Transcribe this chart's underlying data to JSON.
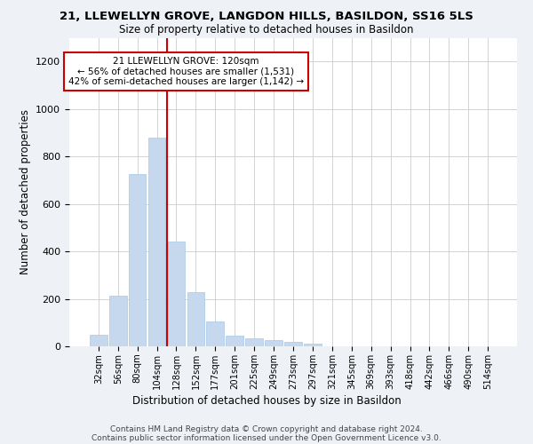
{
  "title": "21, LLEWELLYN GROVE, LANGDON HILLS, BASILDON, SS16 5LS",
  "subtitle": "Size of property relative to detached houses in Basildon",
  "xlabel": "Distribution of detached houses by size in Basildon",
  "ylabel": "Number of detached properties",
  "bar_color": "#c5d8ed",
  "bar_edgecolor": "#a8c8e8",
  "annotation_line_color": "#cc0000",
  "annotation_text_line1": "21 LLEWELLYN GROVE: 120sqm",
  "annotation_text_line2": "← 56% of detached houses are smaller (1,531)",
  "annotation_text_line3": "42% of semi-detached houses are larger (1,142) →",
  "categories": [
    "32sqm",
    "56sqm",
    "80sqm",
    "104sqm",
    "128sqm",
    "152sqm",
    "177sqm",
    "201sqm",
    "225sqm",
    "249sqm",
    "273sqm",
    "297sqm",
    "321sqm",
    "345sqm",
    "369sqm",
    "393sqm",
    "418sqm",
    "442sqm",
    "466sqm",
    "490sqm",
    "514sqm"
  ],
  "values": [
    50,
    215,
    725,
    880,
    440,
    230,
    105,
    45,
    35,
    25,
    20,
    10,
    0,
    0,
    0,
    0,
    0,
    0,
    0,
    0,
    0
  ],
  "ylim": [
    0,
    1300
  ],
  "yticks": [
    0,
    200,
    400,
    600,
    800,
    1000,
    1200
  ],
  "red_line_index": 4,
  "footer_line1": "Contains HM Land Registry data © Crown copyright and database right 2024.",
  "footer_line2": "Contains public sector information licensed under the Open Government Licence v3.0.",
  "background_color": "#eef2f7",
  "plot_background_color": "#ffffff",
  "grid_color": "#cccccc"
}
